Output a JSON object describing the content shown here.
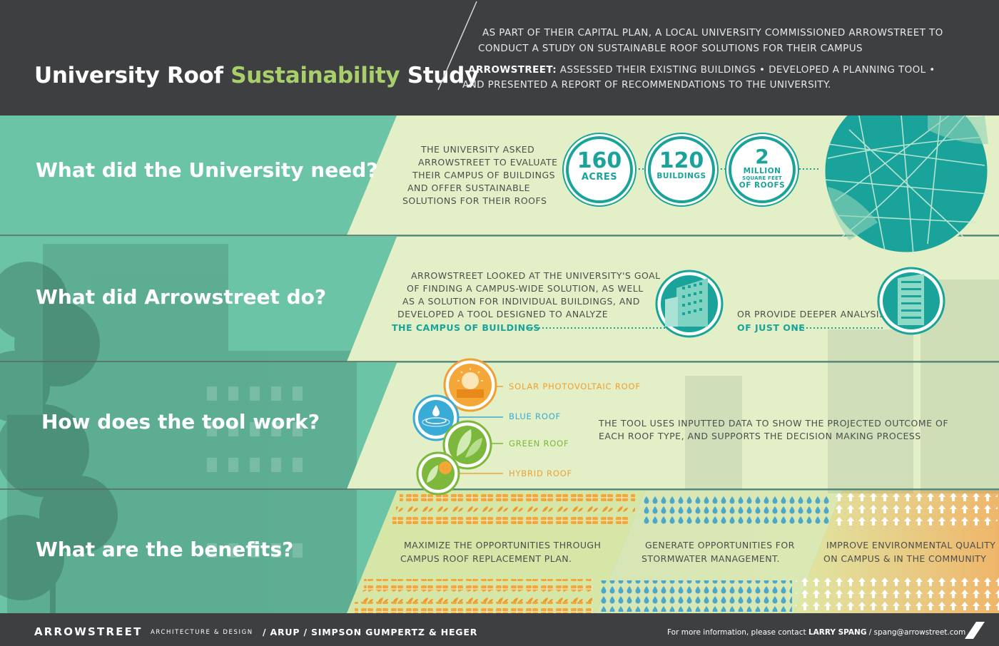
{
  "header": {
    "title_part1": "University Roof ",
    "title_accent": "Sustainability",
    "title_part2": " Study",
    "intro_line1": "AS PART OF THEIR CAPITAL PLAN, A LOCAL UNIVERSITY COMMISSIONED ARROWSTREET TO",
    "intro_line2": "CONDUCT A STUDY ON SUSTAINABLE ROOF SOLUTIONS FOR THEIR CAMPUS",
    "summary_bold": "ARROWSTREET:",
    "summary_line1": " ASSESSED THEIR EXISTING BUILDINGS  •  DEVELOPED A PLANNING TOOL  •",
    "summary_line2": "AND PRESENTED A REPORT OF RECOMMENDATIONS TO THE UNIVERSITY."
  },
  "sections": {
    "need": {
      "question": "What did the University need?",
      "text": [
        "THE UNIVERSITY ASKED",
        "ARROWSTREET TO EVALUATE",
        "THEIR CAMPUS OF BUILDINGS",
        "AND OFFER SUSTAINABLE",
        "SOLUTIONS FOR THEIR ROOFS"
      ],
      "stats": [
        {
          "num": "160",
          "unit": "ACRES"
        },
        {
          "num": "120",
          "unit": "BUILDINGS"
        },
        {
          "num": "2",
          "unit": "MILLION",
          "unit2": "SQUARE FEET",
          "unit3": "OF ROOFS"
        }
      ]
    },
    "do": {
      "question": "What did Arrowstreet do?",
      "text": [
        "ARROWSTREET LOOKED AT THE UNIVERSITY'S GOAL",
        "OF FINDING A CAMPUS-WIDE SOLUTION, AS WELL",
        "AS A SOLUTION FOR INDIVIDUAL BUILDINGS, AND",
        "DEVELOPED A TOOL DESIGNED TO ANALYZE"
      ],
      "highlight1": "THE CAMPUS OF BUILDINGS",
      "text2": "OR PROVIDE DEEPER ANALYSIS",
      "highlight2": "OF JUST ONE"
    },
    "tool": {
      "question": "How does the tool work?",
      "roofs": [
        {
          "label": "SOLAR PHOTOVOLTAIC ROOF",
          "color": "#f0a030"
        },
        {
          "label": "BLUE ROOF",
          "color": "#3aaad6"
        },
        {
          "label": "GREEN ROOF",
          "color": "#7bb83c"
        },
        {
          "label": "HYBRID ROOF",
          "color": "#e9a33a"
        }
      ],
      "text": [
        "THE TOOL USES INPUTTED DATA TO SHOW THE PROJECTED OUTCOME OF",
        "EACH ROOF TYPE, AND SUPPORTS THE DECISION MAKING PROCESS"
      ]
    },
    "benefits": {
      "question": "What are the benefits?",
      "items": [
        {
          "line1": "MAXIMIZE THE OPPORTUNITIES THROUGH",
          "line2": "CAMPUS ROOF REPLACEMENT PLAN."
        },
        {
          "line1": "GENERATE OPPORTUNITIES FOR",
          "line2": "STORMWATER MANAGEMENT."
        },
        {
          "line1": "IMPROVE ENVIRONMENTAL QUALITY",
          "line2": "ON CAMPUS & IN THE COMMUNITY"
        }
      ]
    }
  },
  "footer": {
    "brand": "ARROWSTREET",
    "brand_sub": "ARCHITECTURE & DESIGN",
    "partners": "/  ARUP  /  SIMPSON GUMPERTZ & HEGER",
    "contact_prefix": "For more information, please contact ",
    "contact_name": "LARRY SPANG",
    "contact_sep": " / ",
    "contact_email": "spang@arrowstreet.com"
  },
  "colors": {
    "teal": "#1aa39a",
    "green_accent": "#a9cf6c",
    "panel_bg": "#e3efc6",
    "header_bg": "#3e3f41"
  }
}
